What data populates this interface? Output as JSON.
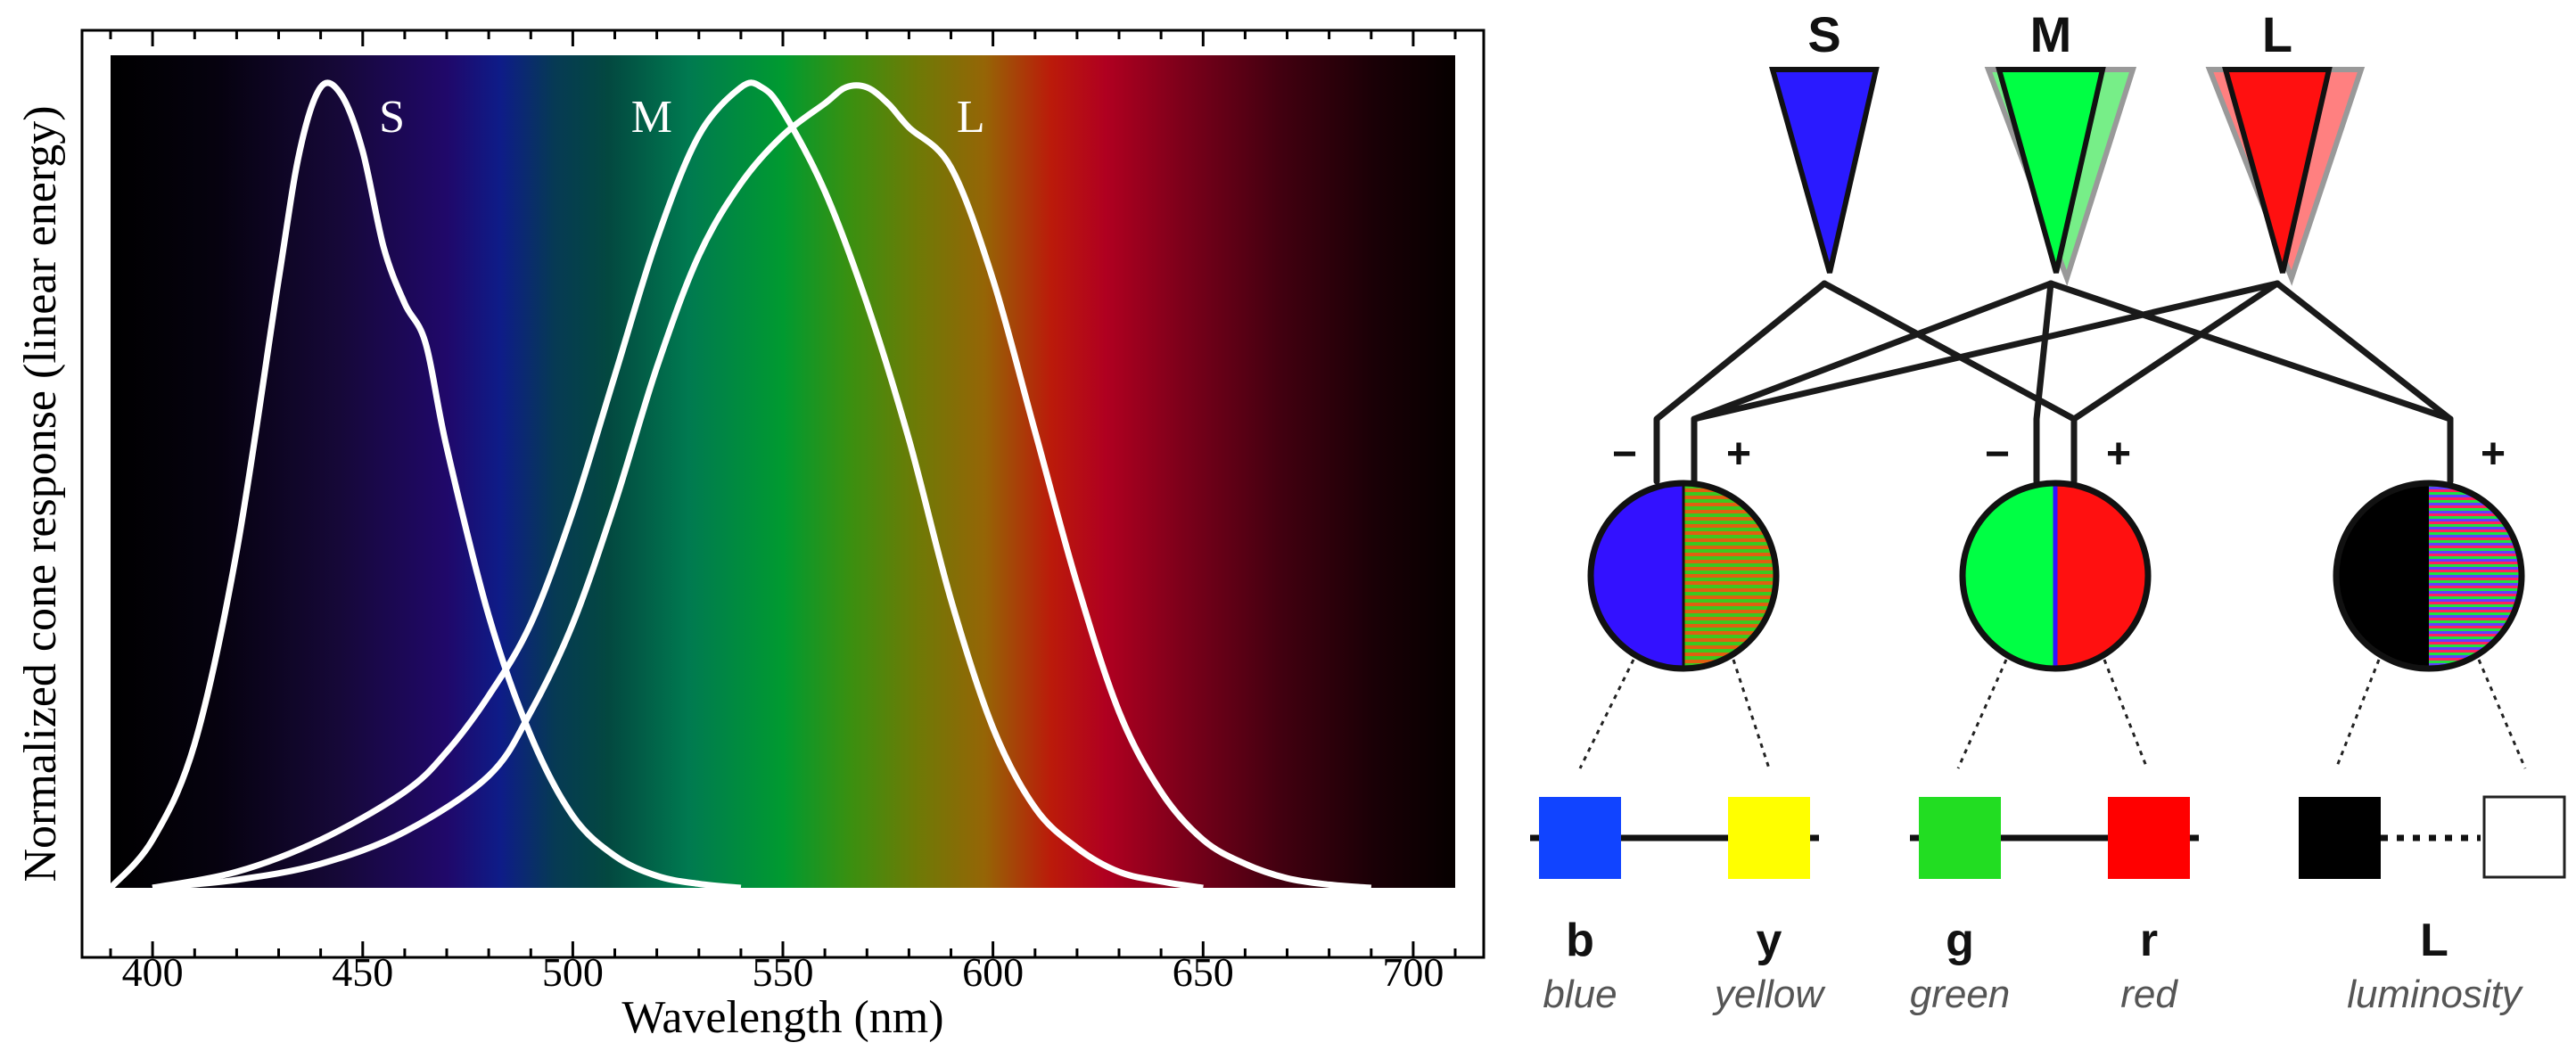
{
  "chart_data": {
    "type": "line",
    "title": "",
    "xlabel": "Wavelength (nm)",
    "ylabel": "Normalized cone response (linear energy)",
    "xlim": [
      390,
      710
    ],
    "ylim": [
      0,
      1
    ],
    "x_ticks": [
      "400",
      "450",
      "500",
      "550",
      "600",
      "650",
      "700"
    ],
    "series": [
      {
        "name": "S",
        "x": [
          390,
          400,
          410,
          420,
          430,
          435,
          440,
          445,
          450,
          455,
          460,
          465,
          470,
          480,
          490,
          500,
          510,
          520,
          530,
          540
        ],
        "values": [
          0.0,
          0.06,
          0.18,
          0.42,
          0.76,
          0.92,
          1.0,
          0.99,
          0.92,
          0.8,
          0.73,
          0.68,
          0.55,
          0.34,
          0.19,
          0.09,
          0.04,
          0.015,
          0.005,
          0.0
        ]
      },
      {
        "name": "M",
        "x": [
          400,
          420,
          440,
          460,
          470,
          480,
          490,
          500,
          510,
          520,
          530,
          540,
          545,
          550,
          560,
          570,
          580,
          590,
          600,
          610,
          620,
          630,
          640,
          650
        ],
        "values": [
          0.0,
          0.02,
          0.06,
          0.12,
          0.17,
          0.24,
          0.33,
          0.47,
          0.64,
          0.81,
          0.94,
          1.0,
          1.0,
          0.97,
          0.87,
          0.73,
          0.56,
          0.36,
          0.2,
          0.1,
          0.05,
          0.02,
          0.008,
          0.0
        ]
      },
      {
        "name": "L",
        "x": [
          400,
          420,
          440,
          460,
          480,
          490,
          500,
          510,
          520,
          530,
          540,
          550,
          560,
          565,
          570,
          575,
          580,
          590,
          600,
          610,
          620,
          630,
          640,
          650,
          660,
          670,
          680,
          690
        ],
        "values": [
          0.0,
          0.01,
          0.03,
          0.07,
          0.14,
          0.22,
          0.33,
          0.48,
          0.65,
          0.79,
          0.88,
          0.94,
          0.98,
          1.0,
          1.0,
          0.98,
          0.95,
          0.9,
          0.76,
          0.57,
          0.38,
          0.22,
          0.12,
          0.06,
          0.03,
          0.012,
          0.004,
          0.0
        ]
      }
    ],
    "grid": false,
    "legend": "none (series labeled at curve peaks)",
    "background": "visible spectrum gradient"
  },
  "diagram": {
    "cones": [
      {
        "label": "S",
        "color": "#2a1aff"
      },
      {
        "label": "M",
        "color": "#00ff44"
      },
      {
        "label": "L",
        "color": "#ff1010"
      }
    ],
    "minus_sign": "−",
    "plus_sign": "+",
    "channels": [
      {
        "left_key": "b",
        "left_name": "blue",
        "right_key": "y",
        "right_name": "yellow",
        "left_color": "#1144ff",
        "right_color": "#ffff00"
      },
      {
        "left_key": "g",
        "left_name": "green",
        "right_key": "r",
        "right_name": "red",
        "left_color": "#22dd22",
        "right_color": "#ff0000"
      },
      {
        "left_key": "L",
        "left_name": "luminosity",
        "left_color": "#000000",
        "right_color": "#ffffff"
      }
    ]
  }
}
